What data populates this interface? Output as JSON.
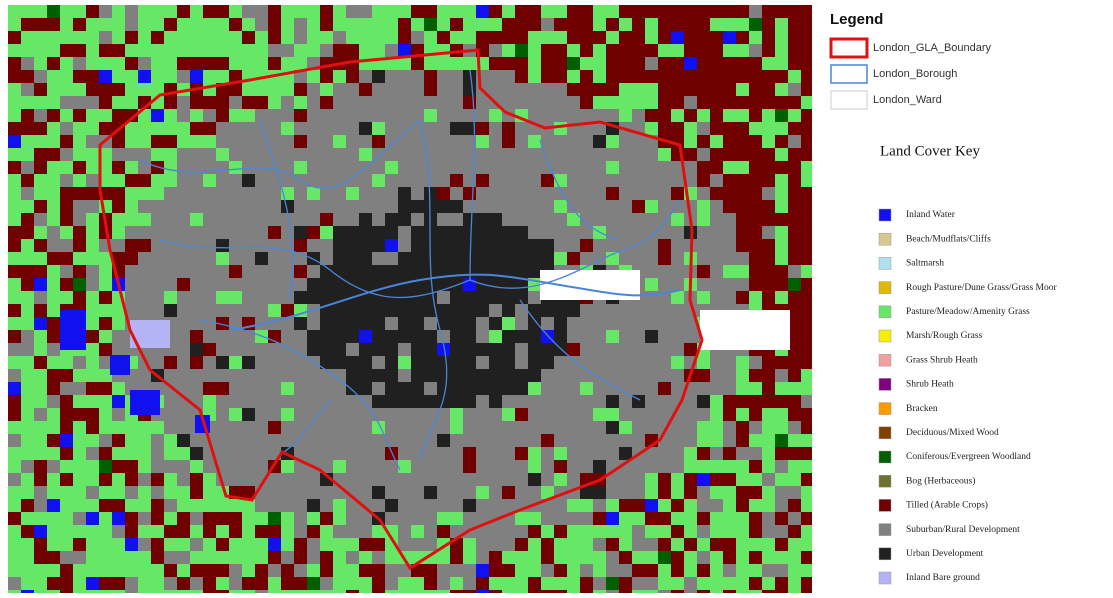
{
  "legend": {
    "title": "Legend",
    "layers": [
      {
        "label": "London_GLA_Boundary",
        "color": "#e01010"
      },
      {
        "label": "London_Borough",
        "color": "#4a86d8"
      },
      {
        "label": "London_Ward",
        "color": "#ffffff"
      }
    ]
  },
  "land_cover_key": {
    "title": "Land Cover Key",
    "classes": [
      {
        "label": "Inland Water",
        "color": "#1010f0"
      },
      {
        "label": "Beach/Mudflats/Cliffs",
        "color": "#d8c890"
      },
      {
        "label": "Saltmarsh",
        "color": "#b0e0f0"
      },
      {
        "label": "Rough Pasture/Dune Grass/Grass Moor",
        "color": "#e0b800"
      },
      {
        "label": "Pasture/Meadow/Amenity Grass",
        "color": "#66e866"
      },
      {
        "label": "Marsh/Rough Grass",
        "color": "#f8f000"
      },
      {
        "label": "Grass Shrub Heath",
        "color": "#f0a0a0"
      },
      {
        "label": "Shrub Heath",
        "color": "#800080"
      },
      {
        "label": "Bracken",
        "color": "#ff9900"
      },
      {
        "label": "Deciduous/Mixed Wood",
        "color": "#804000"
      },
      {
        "label": "Coniferous/Evergreen Woodland",
        "color": "#006000"
      },
      {
        "label": "Bog (Herbaceous)",
        "color": "#707030"
      },
      {
        "label": "Tilled (Arable Crops)",
        "color": "#700000"
      },
      {
        "label": "Suburban/Rural Development",
        "color": "#808080"
      },
      {
        "label": "Urban Development",
        "color": "#202020"
      },
      {
        "label": "Inland Bare ground",
        "color": "#b4b4f4"
      }
    ]
  }
}
